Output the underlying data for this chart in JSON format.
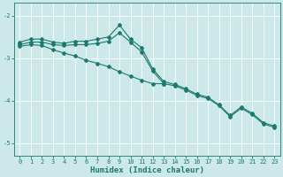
{
  "xlabel": "Humidex (Indice chaleur)",
  "xlim": [
    -0.5,
    23.5
  ],
  "ylim": [
    -5.3,
    -1.7
  ],
  "yticks": [
    -5,
    -4,
    -3,
    -2
  ],
  "xticks": [
    0,
    1,
    2,
    3,
    4,
    5,
    6,
    7,
    8,
    9,
    10,
    11,
    12,
    13,
    14,
    15,
    16,
    17,
    18,
    19,
    20,
    21,
    22,
    23
  ],
  "bg_color": "#cde8e8",
  "line_color": "#1a7a6e",
  "grid_color": "#b8d8d8",
  "line1_x": [
    0,
    1,
    2,
    3,
    4,
    5,
    6,
    7,
    8,
    9,
    10,
    11,
    12,
    13,
    14,
    15,
    16,
    17,
    18,
    19,
    20,
    21,
    22,
    23
  ],
  "line1_y": [
    -2.62,
    -2.55,
    -2.55,
    -2.62,
    -2.65,
    -2.6,
    -2.6,
    -2.55,
    -2.5,
    -2.22,
    -2.55,
    -2.75,
    -3.25,
    -3.55,
    -3.62,
    -3.72,
    -3.85,
    -3.92,
    -4.1,
    -4.35,
    -4.15,
    -4.3,
    -4.52,
    -4.6
  ],
  "line2_x": [
    0,
    1,
    2,
    3,
    4,
    5,
    6,
    7,
    8,
    9,
    10,
    11,
    12,
    13,
    14,
    15,
    16,
    17,
    18,
    19,
    20,
    21,
    22,
    23
  ],
  "line2_y": [
    -2.68,
    -2.62,
    -2.62,
    -2.68,
    -2.7,
    -2.68,
    -2.68,
    -2.65,
    -2.6,
    -2.4,
    -2.62,
    -2.85,
    -3.3,
    -3.6,
    -3.65,
    -3.75,
    -3.88,
    -3.95,
    -4.12,
    -4.38,
    -4.18,
    -4.33,
    -4.55,
    -4.63
  ],
  "line3_x": [
    0,
    1,
    2,
    3,
    4,
    5,
    6,
    7,
    8,
    9,
    10,
    11,
    12,
    13
  ],
  "line3_y": [
    -2.72,
    -2.68,
    -2.7,
    -2.8,
    -2.88,
    -2.95,
    -3.05,
    -3.12,
    -3.2,
    -3.32,
    -3.42,
    -3.52,
    -3.6,
    -3.6
  ]
}
